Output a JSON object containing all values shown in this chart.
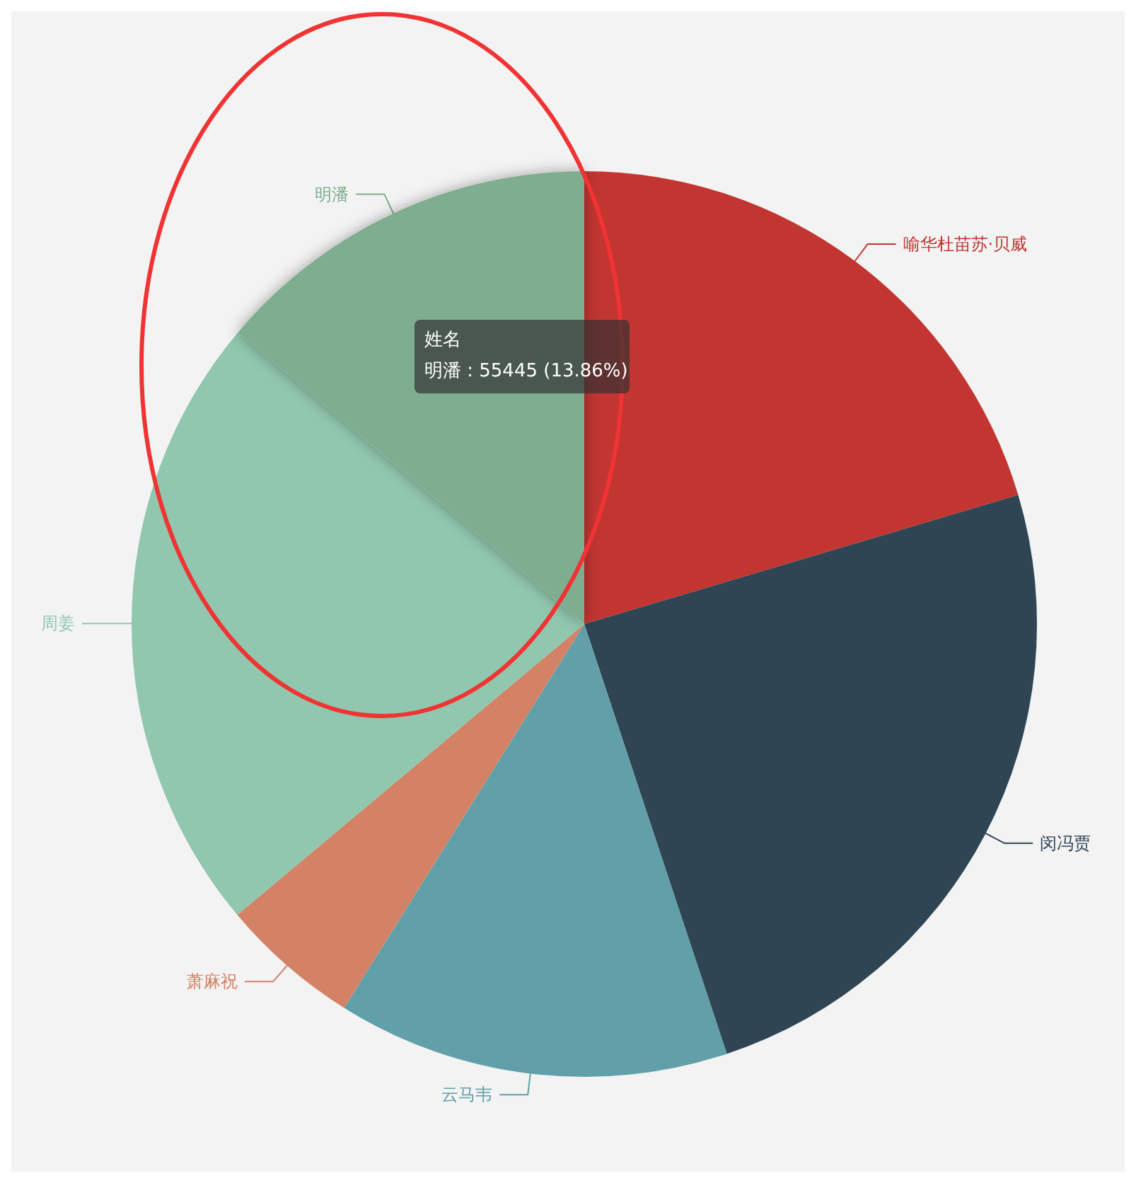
{
  "chart_data": {
    "type": "pie",
    "categories": [
      "喻华杜苗苏·贝威",
      "闵冯贾",
      "云马韦",
      "萧麻祝",
      "周姜",
      "明潘"
    ],
    "values": [
      20.4,
      24.5,
      14.0,
      5.0,
      22.24,
      13.86
    ],
    "colors": [
      "#c23531",
      "#2f4554",
      "#61a0a8",
      "#d48265",
      "#91c7ae",
      "#7fad8f"
    ],
    "annotations": [
      "姓名",
      "明潘 : 55445 (13.86%)"
    ],
    "legend": false
  }
}
